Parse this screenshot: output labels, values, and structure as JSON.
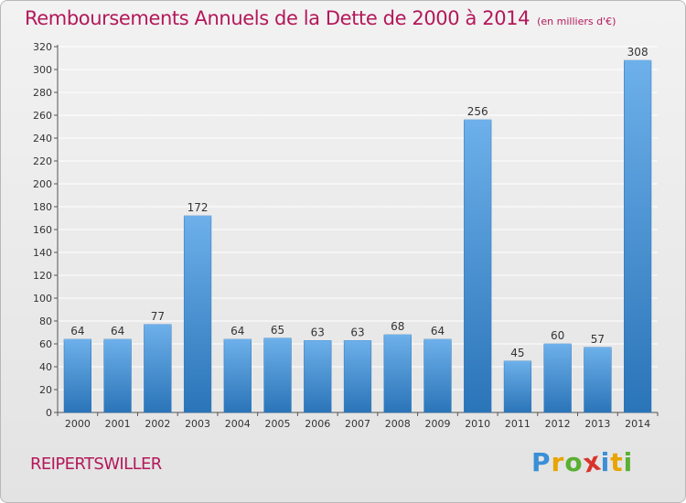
{
  "header": {
    "title": "Remboursements Annuels de la Dette de 2000 à 2014",
    "unit": "(en milliers d'€)"
  },
  "footer": {
    "commune": "REIPERTSWILLER",
    "logo_text": [
      "P",
      "r",
      "o",
      "x",
      "i",
      "t",
      "i"
    ],
    "logo_colors": [
      "#3a8fd6",
      "#e8a400",
      "#5ab031",
      "#d9342b",
      "#3a8fd6",
      "#e8a400",
      "#5ab031"
    ]
  },
  "colors": {
    "bar": "#3d8fd7",
    "bar_dark": "#2a74b8",
    "bar_light": "#6db0ea",
    "grid": "#ffffff",
    "axis_text": "#333333",
    "title": "#b3185a"
  },
  "chart_data": {
    "type": "bar",
    "title": "Remboursements Annuels de la Dette de 2000 à 2014",
    "subtitle": "(en milliers d'€)",
    "categories": [
      "2000",
      "2001",
      "2002",
      "2003",
      "2004",
      "2005",
      "2006",
      "2007",
      "2008",
      "2009",
      "2010",
      "2011",
      "2012",
      "2013",
      "2014"
    ],
    "values": [
      64,
      64,
      77,
      172,
      64,
      65,
      63,
      63,
      68,
      64,
      256,
      45,
      60,
      57,
      308
    ],
    "ylim": [
      0,
      320
    ],
    "yticks": [
      0,
      20,
      40,
      60,
      80,
      100,
      120,
      140,
      160,
      180,
      200,
      220,
      240,
      260,
      280,
      300,
      320
    ],
    "grid": true,
    "data_labels": true
  }
}
